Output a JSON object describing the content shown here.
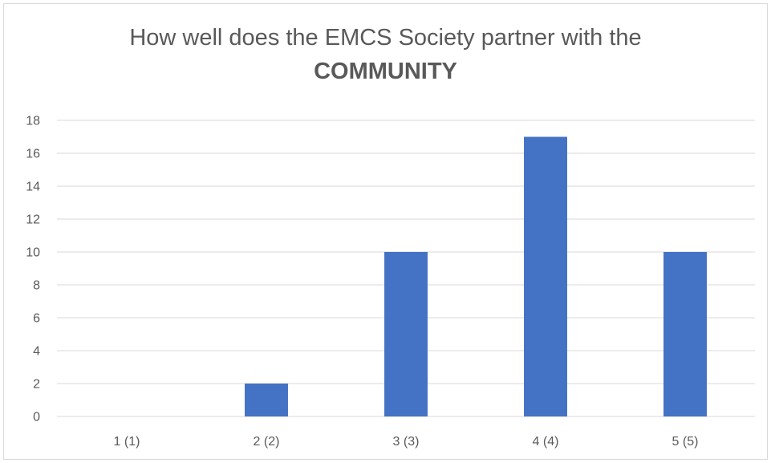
{
  "chart_data": {
    "type": "bar",
    "title": "How well does the EMCS Society partner with the",
    "title_bold": "COMMUNITY",
    "categories": [
      "1 (1)",
      "2 (2)",
      "3 (3)",
      "4 (4)",
      "5 (5)"
    ],
    "values": [
      0,
      2,
      10,
      17,
      10
    ],
    "ylim": [
      0,
      18
    ],
    "yticks": [
      0,
      2,
      4,
      6,
      8,
      10,
      12,
      14,
      16,
      18
    ],
    "grid": true,
    "legend": "none",
    "bar_color": "#4472c4",
    "grid_color": "#d9d9d9",
    "text_color": "#595959"
  }
}
